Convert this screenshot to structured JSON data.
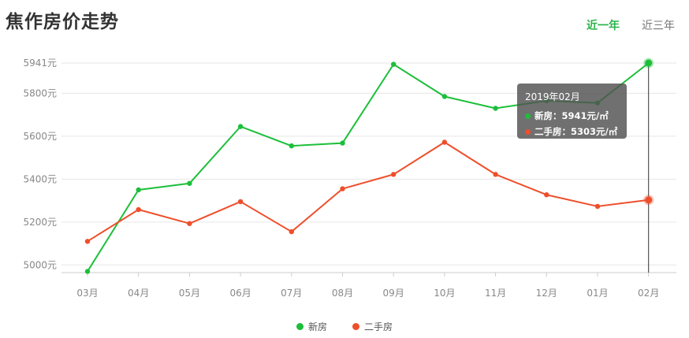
{
  "page": {
    "title": "焦作房价走势",
    "tabs": [
      {
        "label": "近一年",
        "active": true
      },
      {
        "label": "近三年",
        "active": false
      }
    ]
  },
  "colors": {
    "new": "#1cbf3a",
    "second": "#ee4f2b",
    "grid": "#e6e6e6",
    "axis_text": "#888888"
  },
  "tooltip": {
    "title": "2019年02月",
    "rows": [
      {
        "text": "新房：5941元/㎡",
        "color": "#1cbf3a"
      },
      {
        "text": "二手房：5303元/㎡",
        "color": "#ee4f2b"
      }
    ]
  },
  "chart_data": {
    "type": "line",
    "categories": [
      "03月",
      "04月",
      "05月",
      "06月",
      "07月",
      "08月",
      "09月",
      "10月",
      "11月",
      "12月",
      "01月",
      "02月"
    ],
    "series": [
      {
        "name": "新房",
        "key": "new",
        "values": [
          4970,
          5350,
          5380,
          5645,
          5555,
          5568,
          5935,
          5785,
          5730,
          5765,
          5755,
          5941
        ]
      },
      {
        "name": "二手房",
        "key": "second",
        "values": [
          5110,
          5258,
          5193,
          5295,
          5155,
          5355,
          5422,
          5572,
          5422,
          5327,
          5273,
          5303
        ]
      }
    ],
    "y_ticks": [
      5000,
      5200,
      5400,
      5600,
      5800,
      5941
    ],
    "y_tick_labels": [
      "5000元",
      "5200元",
      "5400元",
      "5600元",
      "5800元",
      "5941元"
    ],
    "ylim": [
      4968,
      5941
    ],
    "highlight_index": 11,
    "legend_position": "bottom",
    "grid": true
  }
}
